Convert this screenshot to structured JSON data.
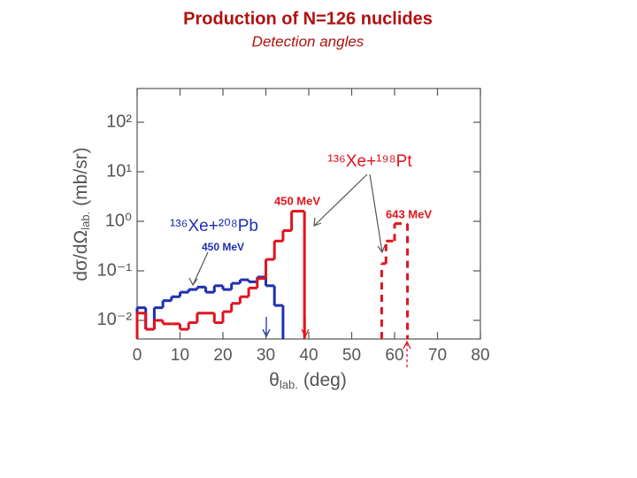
{
  "chart_data": {
    "type": "histogram",
    "title": "Production of N=126 nuclides",
    "subtitle": "Detection angles",
    "xlabel": {
      "main": "θ",
      "sub": "lab.",
      "unit": "(deg)"
    },
    "ylabel": {
      "main": "dσ/dΩ",
      "sub": "lab.",
      "unit": "(mb/sr)"
    },
    "xlim": [
      0,
      80
    ],
    "xticks": [
      0,
      10,
      20,
      30,
      40,
      50,
      60,
      70,
      80
    ],
    "ylim": [
      0.0042,
      480
    ],
    "log_y": true,
    "yticks": [
      {
        "value": 0.01,
        "label": "10⁻²"
      },
      {
        "value": 0.1,
        "label": "10⁻¹"
      },
      {
        "value": 1,
        "label": "10⁰"
      },
      {
        "value": 10,
        "label": "10¹"
      },
      {
        "value": 100,
        "label": "10²"
      }
    ],
    "annotations": [
      {
        "text": "¹³⁶Xe+²⁰⁸Pb",
        "color": "#1f2fb0"
      },
      {
        "text": "¹³⁶Xe+¹⁹⁸Pt",
        "color": "#e0141e"
      }
    ],
    "series": [
      {
        "name": "450 MeV",
        "color": "#1f2fb0",
        "linestyle": "solid",
        "bins": [
          0,
          2,
          4,
          6,
          8,
          10,
          12,
          14,
          16,
          18,
          20,
          22,
          24,
          26,
          28,
          30,
          32,
          34
        ],
        "values": [
          0.018,
          0.0066,
          0.018,
          0.025,
          0.03,
          0.037,
          0.042,
          0.047,
          0.037,
          0.05,
          0.042,
          0.056,
          0.066,
          0.06,
          0.075,
          0.05,
          0.02
        ]
      },
      {
        "name": "450 MeV",
        "color": "#e0141e",
        "linestyle": "solid",
        "bins": [
          0,
          2,
          4,
          6,
          8,
          10,
          12,
          14,
          16,
          18,
          20,
          22,
          24,
          26,
          28,
          30,
          32,
          34,
          36,
          39
        ],
        "values": [
          0.014,
          0.0066,
          0.01,
          0.0085,
          0.0085,
          0.0066,
          0.009,
          0.014,
          0.014,
          0.009,
          0.015,
          0.022,
          0.03,
          0.045,
          0.07,
          0.17,
          0.4,
          0.65,
          1.6
        ]
      },
      {
        "name": "643 MeV",
        "color": "#e0141e",
        "linestyle": "dashed",
        "bins": [
          57,
          58,
          60,
          63
        ],
        "values": [
          0.14,
          0.4,
          0.9
        ]
      }
    ]
  }
}
